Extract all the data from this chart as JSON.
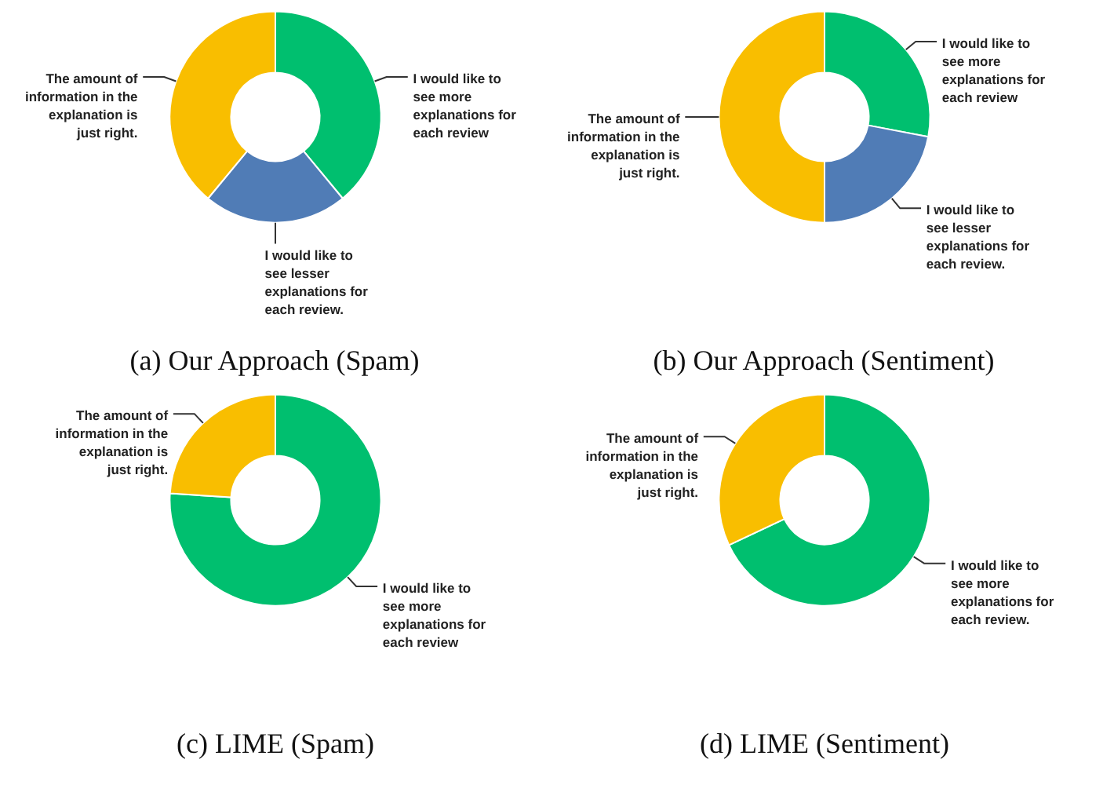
{
  "chart_data": [
    {
      "type": "donut",
      "title": "(a) Our Approach (Spam)",
      "categories": [
        "I would like to see more explanations for each review",
        "I would like to see lesser explanations for each review.",
        "The amount of information in the explanation is just right."
      ],
      "values": [
        39,
        22,
        39
      ],
      "colors": [
        "#00bf6f",
        "#507cb6",
        "#f9be00"
      ]
    },
    {
      "type": "donut",
      "title": "(b) Our Approach (Sentiment)",
      "categories": [
        "I would like to see more explanations for each review",
        "I would like to see lesser explanations for each review.",
        "The amount of information in the explanation is just right."
      ],
      "values": [
        28,
        22,
        50
      ],
      "colors": [
        "#00bf6f",
        "#507cb6",
        "#f9be00"
      ]
    },
    {
      "type": "donut",
      "title": "(c) LIME (Spam)",
      "categories": [
        "I would like to see more explanations for each review",
        "The amount of information in the explanation is just right."
      ],
      "values": [
        76,
        24
      ],
      "colors": [
        "#00bf6f",
        "#f9be00"
      ]
    },
    {
      "type": "donut",
      "title": "(d) LIME (Sentiment)",
      "categories": [
        "I would like to see more explanations for each review.",
        "The amount of information in the explanation is just right."
      ],
      "values": [
        68,
        32
      ],
      "colors": [
        "#00bf6f",
        "#f9be00"
      ]
    }
  ]
}
